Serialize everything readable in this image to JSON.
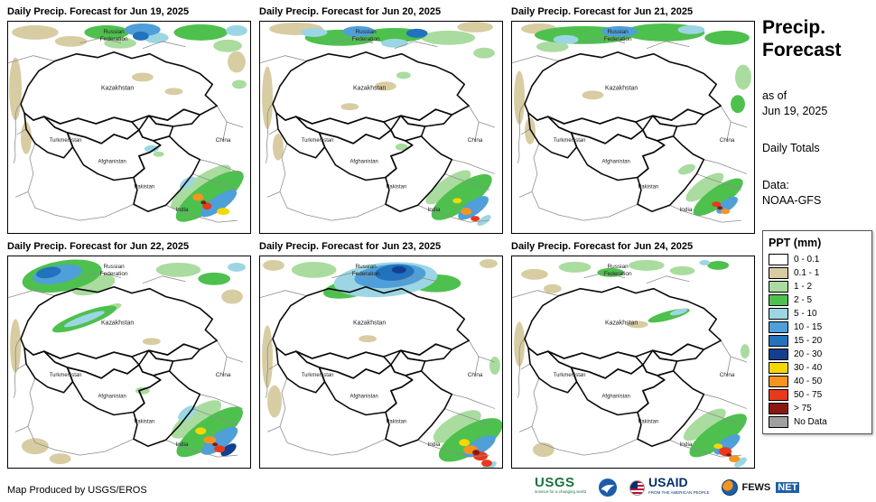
{
  "panels": [
    {
      "title": "Daily Precip. Forecast for Jun 19, 2025",
      "blobs": [
        [
          30,
          12,
          26,
          8,
          0,
          "t"
        ],
        [
          70,
          22,
          18,
          6,
          0,
          "t"
        ],
        [
          8,
          75,
          7,
          35,
          0,
          "t"
        ],
        [
          150,
          62,
          12,
          5,
          0,
          "t"
        ],
        [
          185,
          78,
          10,
          4,
          0,
          "t"
        ],
        [
          255,
          45,
          10,
          12,
          0,
          "t"
        ],
        [
          20,
          130,
          6,
          18,
          0,
          "t"
        ],
        [
          215,
          185,
          40,
          12,
          -35,
          "g1"
        ],
        [
          245,
          27,
          16,
          7,
          0,
          "g1"
        ],
        [
          125,
          24,
          18,
          6,
          0,
          "g1"
        ],
        [
          258,
          70,
          8,
          5,
          0,
          "g1"
        ],
        [
          168,
          148,
          6,
          3,
          0,
          "g1"
        ],
        [
          110,
          12,
          25,
          8,
          0,
          "g2"
        ],
        [
          215,
          12,
          30,
          9,
          0,
          "g2"
        ],
        [
          225,
          195,
          45,
          15,
          -35,
          "g2"
        ],
        [
          165,
          18,
          14,
          6,
          0,
          "b1"
        ],
        [
          255,
          10,
          12,
          6,
          0,
          "b1"
        ],
        [
          200,
          180,
          10,
          5,
          -35,
          "b1"
        ],
        [
          160,
          142,
          8,
          4,
          0,
          "b1"
        ],
        [
          150,
          9,
          20,
          7,
          0,
          "b2"
        ],
        [
          235,
          203,
          24,
          8,
          -35,
          "b2"
        ],
        [
          148,
          16,
          9,
          5,
          0,
          "b3"
        ],
        [
          240,
          212,
          7,
          4,
          0,
          "y"
        ],
        [
          212,
          196,
          6,
          4,
          0,
          "o"
        ],
        [
          222,
          206,
          5,
          4,
          0,
          "r"
        ],
        [
          218,
          202,
          3,
          2,
          0,
          "dr"
        ]
      ]
    },
    {
      "title": "Daily Precip. Forecast for Jun 20, 2025",
      "blobs": [
        [
          40,
          8,
          30,
          7,
          0,
          "t"
        ],
        [
          240,
          6,
          20,
          6,
          0,
          "t"
        ],
        [
          8,
          85,
          6,
          35,
          0,
          "t"
        ],
        [
          140,
          72,
          12,
          5,
          0,
          "t"
        ],
        [
          100,
          95,
          10,
          4,
          0,
          "t"
        ],
        [
          20,
          140,
          6,
          15,
          0,
          "t"
        ],
        [
          210,
          18,
          30,
          8,
          0,
          "g1"
        ],
        [
          210,
          185,
          30,
          10,
          -35,
          "g1"
        ],
        [
          160,
          60,
          8,
          4,
          0,
          "g1"
        ],
        [
          158,
          140,
          7,
          4,
          0,
          "g1"
        ],
        [
          250,
          35,
          12,
          6,
          0,
          "g1"
        ],
        [
          90,
          18,
          40,
          9,
          0,
          "g2"
        ],
        [
          150,
          15,
          35,
          8,
          0,
          "g2"
        ],
        [
          225,
          196,
          40,
          14,
          -35,
          "g2"
        ],
        [
          150,
          24,
          15,
          5,
          0,
          "b1"
        ],
        [
          250,
          222,
          9,
          4,
          -35,
          "b1"
        ],
        [
          60,
          12,
          15,
          5,
          0,
          "b1"
        ],
        [
          110,
          11,
          18,
          6,
          0,
          "b2"
        ],
        [
          238,
          208,
          20,
          8,
          -35,
          "b2"
        ],
        [
          175,
          13,
          12,
          5,
          0,
          "b3"
        ],
        [
          220,
          200,
          5,
          3,
          0,
          "y"
        ],
        [
          230,
          212,
          6,
          4,
          0,
          "o"
        ],
        [
          240,
          220,
          5,
          3,
          0,
          "r"
        ]
      ]
    },
    {
      "title": "Daily Precip. Forecast for Jun 21, 2025",
      "blobs": [
        [
          30,
          8,
          20,
          6,
          0,
          "t"
        ],
        [
          8,
          85,
          6,
          30,
          0,
          "t"
        ],
        [
          20,
          122,
          6,
          15,
          0,
          "t"
        ],
        [
          90,
          82,
          12,
          5,
          0,
          "t"
        ],
        [
          215,
          185,
          25,
          9,
          -35,
          "g1"
        ],
        [
          258,
          62,
          9,
          14,
          0,
          "g1"
        ],
        [
          195,
          165,
          10,
          5,
          -20,
          "g1"
        ],
        [
          45,
          28,
          18,
          6,
          0,
          "g1"
        ],
        [
          80,
          15,
          55,
          10,
          0,
          "g2"
        ],
        [
          170,
          12,
          45,
          10,
          0,
          "g2"
        ],
        [
          240,
          18,
          25,
          8,
          0,
          "g2"
        ],
        [
          252,
          92,
          8,
          10,
          0,
          "g2"
        ],
        [
          230,
          196,
          33,
          11,
          -35,
          "g2"
        ],
        [
          60,
          20,
          14,
          5,
          0,
          "b1"
        ],
        [
          200,
          9,
          15,
          5,
          0,
          "b1"
        ],
        [
          120,
          11,
          20,
          6,
          0,
          "b2"
        ],
        [
          240,
          205,
          14,
          6,
          -35,
          "b2"
        ],
        [
          238,
          212,
          5,
          3,
          0,
          "o"
        ],
        [
          228,
          204,
          5,
          3,
          0,
          "r"
        ],
        [
          232,
          208,
          3,
          2,
          0,
          "dr"
        ]
      ]
    },
    {
      "title": "Daily Precip. Forecast for Jun 22, 2025",
      "blobs": [
        [
          250,
          45,
          12,
          8,
          0,
          "t"
        ],
        [
          8,
          100,
          6,
          30,
          0,
          "t"
        ],
        [
          30,
          212,
          15,
          9,
          0,
          "t"
        ],
        [
          58,
          226,
          12,
          6,
          0,
          "t"
        ],
        [
          160,
          95,
          10,
          4,
          0,
          "t"
        ],
        [
          95,
          32,
          25,
          10,
          -15,
          "g1"
        ],
        [
          190,
          15,
          25,
          8,
          0,
          "g1"
        ],
        [
          210,
          182,
          33,
          12,
          -35,
          "g1"
        ],
        [
          115,
          58,
          12,
          4,
          -20,
          "g1"
        ],
        [
          150,
          150,
          8,
          4,
          0,
          "g1"
        ],
        [
          60,
          22,
          45,
          17,
          -10,
          "g2"
        ],
        [
          230,
          25,
          18,
          7,
          0,
          "g2"
        ],
        [
          85,
          70,
          38,
          8,
          -20,
          "g2"
        ],
        [
          225,
          196,
          44,
          15,
          -35,
          "g2"
        ],
        [
          85,
          70,
          24,
          4,
          -20,
          "b1"
        ],
        [
          255,
          12,
          10,
          5,
          0,
          "b1"
        ],
        [
          200,
          175,
          12,
          6,
          -35,
          "b1"
        ],
        [
          55,
          20,
          28,
          10,
          -10,
          "b2"
        ],
        [
          236,
          206,
          24,
          9,
          -35,
          "b2"
        ],
        [
          45,
          18,
          14,
          6,
          -10,
          "b3"
        ],
        [
          246,
          216,
          10,
          5,
          -35,
          "b4"
        ],
        [
          215,
          195,
          6,
          4,
          0,
          "y"
        ],
        [
          225,
          205,
          7,
          4,
          0,
          "o"
        ],
        [
          236,
          215,
          6,
          4,
          0,
          "r"
        ],
        [
          231,
          210,
          3,
          2,
          0,
          "dr"
        ]
      ]
    },
    {
      "title": "Daily Precip. Forecast for Jun 23, 2025",
      "blobs": [
        [
          15,
          10,
          12,
          6,
          0,
          "t"
        ],
        [
          255,
          8,
          10,
          5,
          0,
          "t"
        ],
        [
          8,
          112,
          6,
          35,
          0,
          "t"
        ],
        [
          16,
          162,
          8,
          18,
          0,
          "t"
        ],
        [
          120,
          92,
          10,
          4,
          0,
          "t"
        ],
        [
          60,
          15,
          25,
          9,
          0,
          "g1"
        ],
        [
          220,
          190,
          30,
          12,
          -30,
          "g1"
        ],
        [
          262,
          122,
          6,
          10,
          0,
          "g1"
        ],
        [
          100,
          36,
          30,
          10,
          -10,
          "g2"
        ],
        [
          196,
          30,
          28,
          10,
          0,
          "g2"
        ],
        [
          235,
          205,
          40,
          16,
          -30,
          "g2"
        ],
        [
          140,
          26,
          58,
          19,
          -5,
          "b1"
        ],
        [
          255,
          235,
          10,
          4,
          -30,
          "b1"
        ],
        [
          145,
          22,
          40,
          13,
          -5,
          "b2"
        ],
        [
          245,
          212,
          20,
          8,
          -30,
          "b2"
        ],
        [
          150,
          18,
          22,
          9,
          -5,
          "b3"
        ],
        [
          155,
          15,
          8,
          4,
          0,
          "b4"
        ],
        [
          228,
          208,
          6,
          4,
          0,
          "y"
        ],
        [
          235,
          216,
          8,
          5,
          0,
          "o"
        ],
        [
          246,
          223,
          8,
          5,
          0,
          "r"
        ],
        [
          253,
          231,
          6,
          4,
          0,
          "r"
        ],
        [
          241,
          219,
          4,
          3,
          0,
          "dr"
        ]
      ]
    },
    {
      "title": "Daily Precip. Forecast for Jun 24, 2025",
      "blobs": [
        [
          25,
          20,
          15,
          6,
          0,
          "t"
        ],
        [
          45,
          36,
          10,
          5,
          0,
          "t"
        ],
        [
          140,
          76,
          12,
          4,
          0,
          "t"
        ],
        [
          8,
          98,
          6,
          25,
          0,
          "t"
        ],
        [
          35,
          216,
          12,
          8,
          0,
          "t"
        ],
        [
          70,
          12,
          18,
          6,
          0,
          "g1"
        ],
        [
          150,
          10,
          20,
          6,
          0,
          "g1"
        ],
        [
          190,
          16,
          14,
          5,
          0,
          "g1"
        ],
        [
          215,
          188,
          28,
          10,
          -35,
          "g1"
        ],
        [
          260,
          106,
          5,
          8,
          0,
          "g1"
        ],
        [
          110,
          18,
          15,
          5,
          0,
          "g2"
        ],
        [
          230,
          10,
          12,
          5,
          0,
          "g2"
        ],
        [
          175,
          66,
          24,
          5,
          -15,
          "g2"
        ],
        [
          230,
          200,
          38,
          13,
          -35,
          "g2"
        ],
        [
          215,
          7,
          6,
          3,
          0,
          "b1"
        ],
        [
          186,
          62,
          10,
          3,
          -15,
          "b1"
        ],
        [
          255,
          230,
          8,
          4,
          -35,
          "b1"
        ],
        [
          240,
          210,
          17,
          7,
          -35,
          "b2"
        ],
        [
          230,
          212,
          5,
          3,
          0,
          "y"
        ],
        [
          248,
          226,
          6,
          4,
          0,
          "o"
        ],
        [
          238,
          218,
          7,
          5,
          0,
          "r"
        ],
        [
          242,
          222,
          3,
          2,
          0,
          "dr"
        ]
      ]
    }
  ],
  "map_labels": {
    "russia_1": "Russian",
    "russia_2": "Federation",
    "kazakhstan": "Kazakhstan",
    "turkmenistan": "Turkmenistan",
    "afghanistan": "Afghanistan",
    "pakistan": "Pakistan",
    "china": "China",
    "india": "India"
  },
  "sidebar": {
    "title_line1": "Precip.",
    "title_line2": "Forecast",
    "asof_line1": "as of",
    "asof_line2": "Jun 19, 2025",
    "daily_totals": "Daily Totals",
    "data_line1": "Data:",
    "data_line2": "NOAA-GFS"
  },
  "legend": {
    "title": "PPT (mm)",
    "entries": [
      {
        "key": "w",
        "label": "0 - 0.1",
        "color": "#FFFFFF"
      },
      {
        "key": "t",
        "label": "0.1 - 1",
        "color": "#D8CCA2"
      },
      {
        "key": "g1",
        "label": "1 - 2",
        "color": "#A9DC9E"
      },
      {
        "key": "g2",
        "label": "2 - 5",
        "color": "#4EC04E"
      },
      {
        "key": "b1",
        "label": "5 - 10",
        "color": "#9CD6E4"
      },
      {
        "key": "b2",
        "label": "10 - 15",
        "color": "#4F9FD9"
      },
      {
        "key": "b3",
        "label": "15 - 20",
        "color": "#2272BE"
      },
      {
        "key": "b4",
        "label": "20 - 30",
        "color": "#123F8F"
      },
      {
        "key": "y",
        "label": "30 - 40",
        "color": "#F5D800"
      },
      {
        "key": "o",
        "label": "40 - 50",
        "color": "#F7941D"
      },
      {
        "key": "r",
        "label": "50 - 75",
        "color": "#E8391D"
      },
      {
        "key": "dr",
        "label": "> 75",
        "color": "#8C1710"
      },
      {
        "key": "nd",
        "label": "No Data",
        "color": "#A0A0A0"
      }
    ]
  },
  "footer": {
    "credit": "Map Produced by USGS/EROS",
    "usgs": "USGS",
    "usgs_tagline": "science for a changing world",
    "usaid": "USAID",
    "usaid_tagline": "FROM THE AMERICAN PEOPLE",
    "fews_1": "FEWS",
    "fews_2": "NET"
  }
}
